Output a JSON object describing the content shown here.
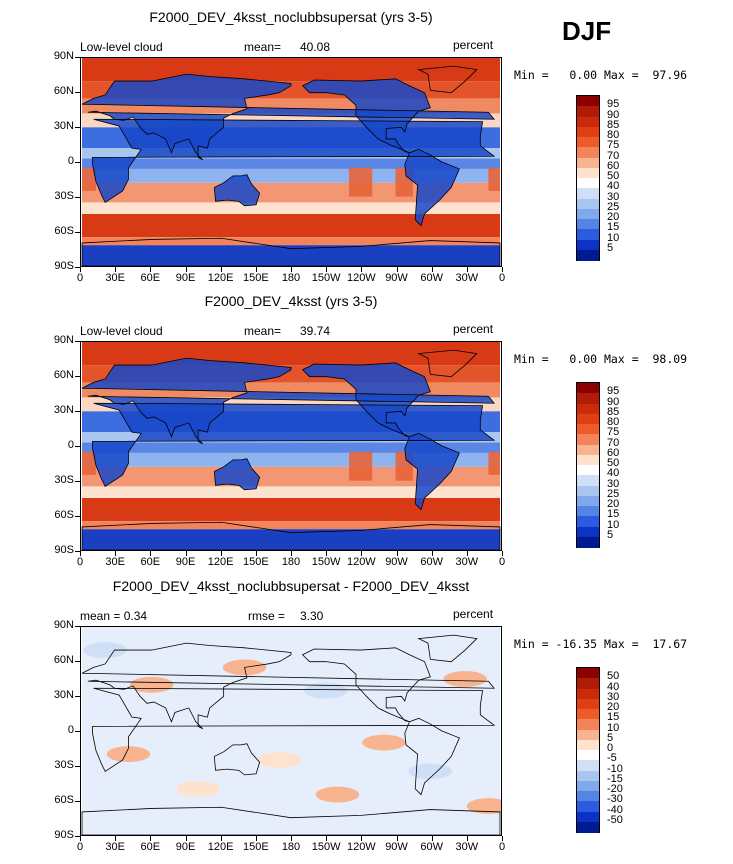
{
  "season": "DJF",
  "lat_labels": [
    "90N",
    "60N",
    "30N",
    "0",
    "30S",
    "60S",
    "90S"
  ],
  "lon_labels": [
    "0",
    "30E",
    "60E",
    "90E",
    "120E",
    "150E",
    "180",
    "150W",
    "120W",
    "90W",
    "60W",
    "30W",
    "0"
  ],
  "panels": [
    {
      "title": "F2000_DEV_4ksst_noclubbsupersat (yrs 3-5)",
      "left_label": "Low-level cloud",
      "mean_label": "mean=",
      "mean_value": "40.08",
      "units": "percent",
      "minmax": "Min =   0.00 Max =  97.96",
      "kind": "abs"
    },
    {
      "title": "F2000_DEV_4ksst (yrs 3-5)",
      "left_label": "Low-level cloud",
      "mean_label": "mean=",
      "mean_value": "39.74",
      "units": "percent",
      "minmax": "Min =   0.00 Max =  98.09",
      "kind": "abs"
    },
    {
      "title": "F2000_DEV_4ksst_noclubbsupersat - F2000_DEV_4ksst",
      "left_label": "mean =   0.34",
      "mean_label": "rmse =",
      "mean_value": "3.30",
      "units": "percent",
      "minmax": "Min = -16.35 Max =  17.67",
      "kind": "diff"
    }
  ],
  "colorbar_abs": {
    "labels": [
      "95",
      "90",
      "85",
      "80",
      "75",
      "70",
      "60",
      "50",
      "40",
      "30",
      "25",
      "20",
      "15",
      "10",
      "5"
    ],
    "colors": [
      "#8b0000",
      "#b01c05",
      "#cc2a0a",
      "#e13e14",
      "#ee5a2a",
      "#f4835a",
      "#f8b48e",
      "#fde3cf",
      "#ffffff",
      "#cfe0f6",
      "#a8c6f0",
      "#80a8ea",
      "#5484e6",
      "#2a5be0",
      "#0d32c8",
      "#001a90"
    ]
  },
  "colorbar_diff": {
    "labels": [
      "50",
      "40",
      "30",
      "20",
      "15",
      "10",
      "5",
      "0",
      "-5",
      "-10",
      "-15",
      "-20",
      "-30",
      "-40",
      "-50"
    ],
    "colors": [
      "#8b0000",
      "#b01c05",
      "#cc2a0a",
      "#e13e14",
      "#ee5a2a",
      "#f4835a",
      "#f8b48e",
      "#fde3cf",
      "#ffffff",
      "#cfe0f6",
      "#a8c6f0",
      "#80a8ea",
      "#5484e6",
      "#2a5be0",
      "#0d32c8",
      "#001a90"
    ]
  },
  "colors": {
    "ocean_high": "#d83a15",
    "ocean_mid": "#f6a07a",
    "land_low": "#1040c0",
    "coast": "#000000",
    "diff_bg": "#e6eefb"
  }
}
